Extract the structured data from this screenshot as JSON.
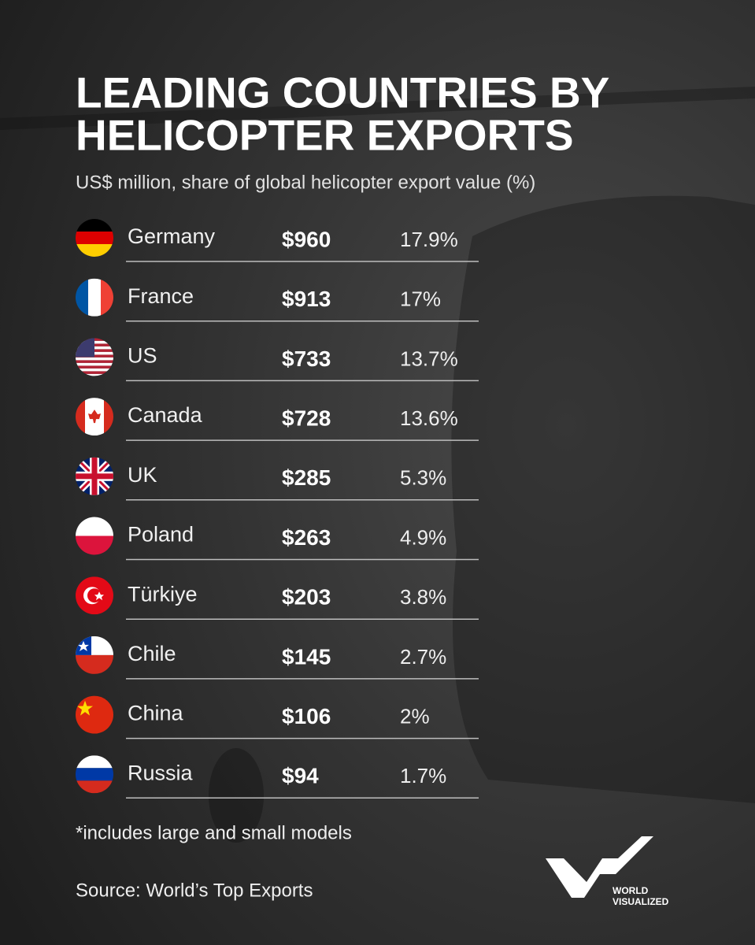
{
  "header": {
    "title_lines": [
      "LEADING COUNTRIES BY",
      "HELICOPTER EXPORTS"
    ],
    "subtitle": "US$ million, share of global helicopter export value (%)"
  },
  "table": {
    "rows": [
      {
        "country": "Germany",
        "value": "$960",
        "share": "17.9%"
      },
      {
        "country": "France",
        "value": "$913",
        "share": "17%"
      },
      {
        "country": "US",
        "value": "$733",
        "share": "13.7%"
      },
      {
        "country": "Canada",
        "value": "$728",
        "share": "13.6%"
      },
      {
        "country": "UK",
        "value": "$285",
        "share": "5.3%"
      },
      {
        "country": "Poland",
        "value": "$263",
        "share": "4.9%"
      },
      {
        "country": "Türkiye",
        "value": "$203",
        "share": "3.8%"
      },
      {
        "country": "Chile",
        "value": "$145",
        "share": "2.7%"
      },
      {
        "country": "China",
        "value": "$106",
        "share": "2%"
      },
      {
        "country": "Russia",
        "value": "$94",
        "share": "1.7%"
      }
    ]
  },
  "footer": {
    "note": "*includes large and small models",
    "source": "Source: World’s Top Exports"
  },
  "logo": {
    "lines": [
      "WORLD",
      "VISUALIZED"
    ]
  }
}
